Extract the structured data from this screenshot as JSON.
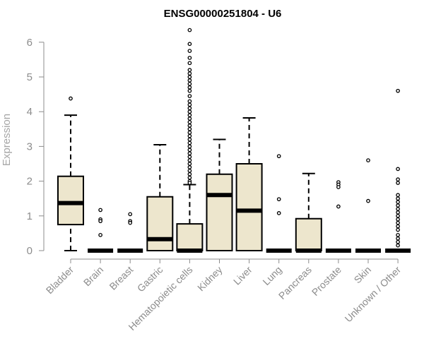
{
  "chart_data": {
    "type": "boxplot",
    "title": "ENSG00000251804 - U6",
    "ylabel": "Expression",
    "ylim": [
      0,
      6
    ],
    "yticks": [
      0,
      1,
      2,
      3,
      4,
      5,
      6
    ],
    "box_color": "#ede6cd",
    "categories": [
      "Bladder",
      "Brain",
      "Breast",
      "Gastric",
      "Hematopoietic cells",
      "Kidney",
      "Liver",
      "Lung",
      "Pancreas",
      "Prostate",
      "Skin",
      "Unknown / Other"
    ],
    "boxes": [
      {
        "min": 0.0,
        "q1": 0.75,
        "median": 1.37,
        "q3": 2.14,
        "max": 3.9,
        "outliers": [
          4.38
        ]
      },
      {
        "min": 0.0,
        "q1": 0.0,
        "median": 0.0,
        "q3": 0.0,
        "max": 0.0,
        "outliers": [
          1.17,
          0.9,
          0.85,
          0.45
        ]
      },
      {
        "min": 0.0,
        "q1": 0.0,
        "median": 0.0,
        "q3": 0.0,
        "max": 0.0,
        "outliers": [
          1.05,
          0.85,
          0.8
        ]
      },
      {
        "min": 0.0,
        "q1": 0.0,
        "median": 0.33,
        "q3": 1.55,
        "max": 3.05,
        "outliers": []
      },
      {
        "min": 0.0,
        "q1": 0.0,
        "median": 0.0,
        "q3": 0.77,
        "max": 1.9,
        "outliers": [
          6.35,
          5.95,
          5.75,
          5.55,
          5.4,
          5.2,
          5.1,
          5.0,
          4.9,
          4.8,
          4.7,
          4.6,
          4.45,
          4.3,
          4.2,
          4.1,
          4.0,
          3.9,
          3.8,
          3.7,
          3.6,
          3.5,
          3.4,
          3.3,
          3.2,
          3.1,
          3.0,
          2.9,
          2.8,
          2.7,
          2.6,
          2.5,
          2.4,
          2.3,
          2.2,
          2.1,
          2.0,
          1.95
        ]
      },
      {
        "min": 0.0,
        "q1": 0.0,
        "median": 1.6,
        "q3": 2.2,
        "max": 3.2,
        "outliers": []
      },
      {
        "min": 0.0,
        "q1": 0.0,
        "median": 1.15,
        "q3": 2.5,
        "max": 3.82,
        "outliers": []
      },
      {
        "min": 0.0,
        "q1": 0.0,
        "median": 0.0,
        "q3": 0.0,
        "max": 0.0,
        "outliers": [
          2.72,
          1.48,
          1.08
        ]
      },
      {
        "min": 0.0,
        "q1": 0.0,
        "median": 0.0,
        "q3": 0.92,
        "max": 2.22,
        "outliers": []
      },
      {
        "min": 0.0,
        "q1": 0.0,
        "median": 0.0,
        "q3": 0.0,
        "max": 0.0,
        "outliers": [
          1.97,
          1.9,
          1.83,
          1.27
        ]
      },
      {
        "min": 0.0,
        "q1": 0.0,
        "median": 0.0,
        "q3": 0.0,
        "max": 0.0,
        "outliers": [
          2.6,
          1.43
        ]
      },
      {
        "min": 0.0,
        "q1": 0.0,
        "median": 0.0,
        "q3": 0.0,
        "max": 0.0,
        "outliers": [
          4.6,
          2.35,
          2.05,
          1.95,
          1.6,
          1.5,
          1.4,
          1.3,
          1.2,
          1.1,
          1.0,
          0.9,
          0.8,
          0.7,
          0.6,
          0.45,
          0.35,
          0.25,
          0.15
        ]
      }
    ]
  }
}
